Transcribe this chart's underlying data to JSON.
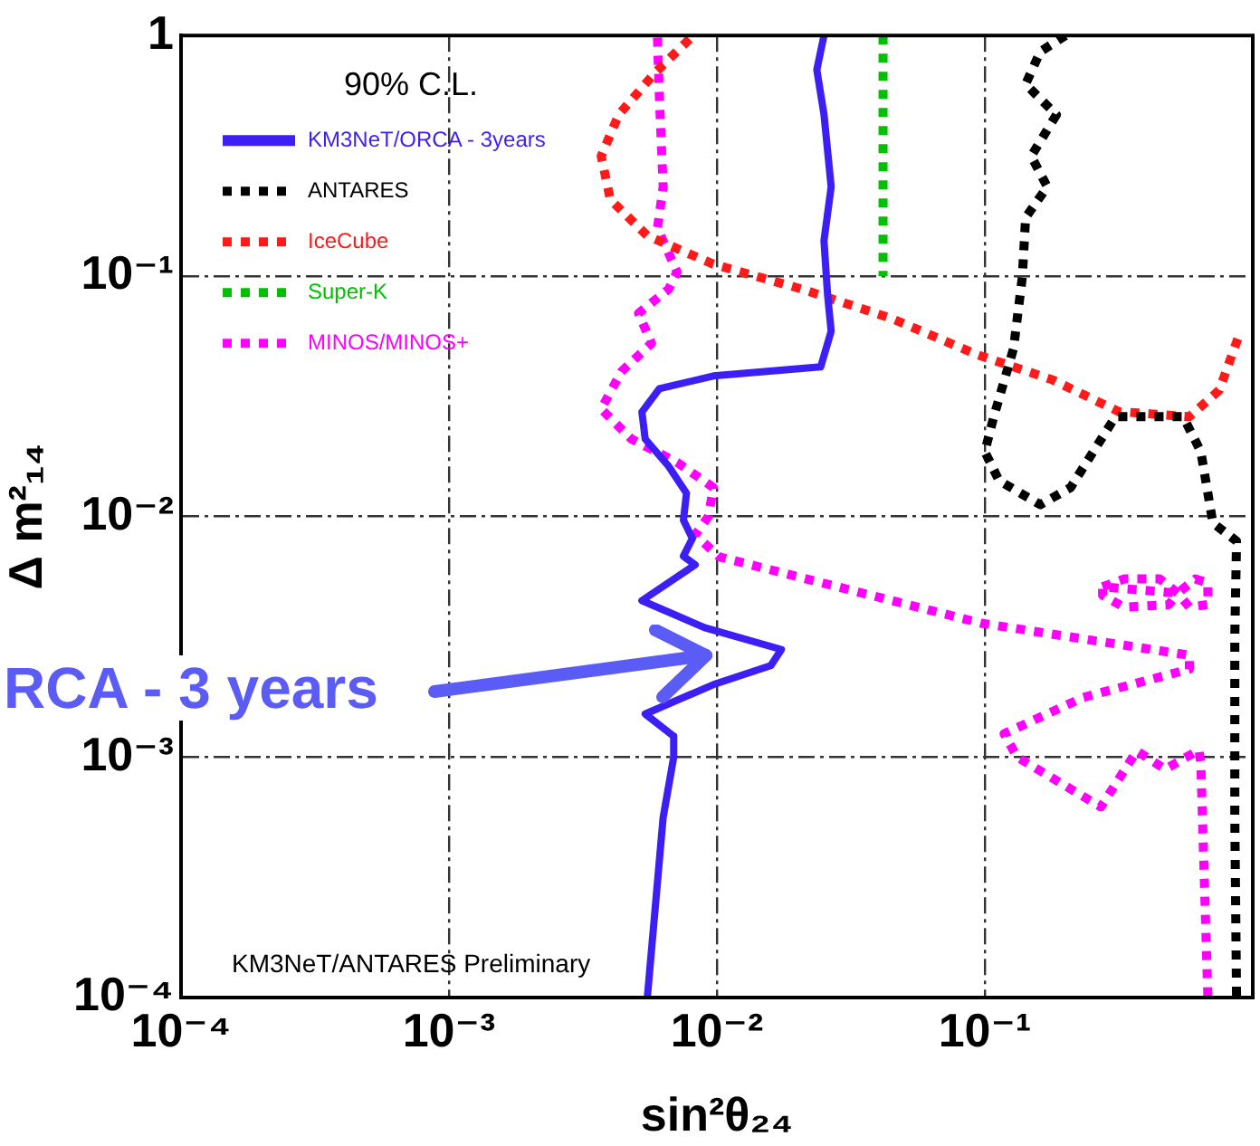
{
  "chart_data": {
    "type": "line",
    "xlabel": "sin²θ₂₄",
    "ylabel": "Δ m²₁₄",
    "legend_title": "90% C.L.",
    "legend": "top left",
    "log": "xy",
    "grid": true,
    "xlim": [
      0.0001,
      1
    ],
    "ylim": [
      0.0001,
      1
    ],
    "xticks": [
      {
        "value": 0.0001,
        "label": "10⁻⁴"
      },
      {
        "value": 0.001,
        "label": "10⁻³"
      },
      {
        "value": 0.01,
        "label": "10⁻²"
      },
      {
        "value": 0.1,
        "label": "10⁻¹"
      },
      {
        "value": 1,
        "label": null
      }
    ],
    "yticks": [
      {
        "value": 0.0001,
        "label": "10⁻⁴"
      },
      {
        "value": 0.001,
        "label": "10⁻³"
      },
      {
        "value": 0.01,
        "label": "10⁻²"
      },
      {
        "value": 0.1,
        "label": "10⁻¹"
      },
      1
    ],
    "series": [
      {
        "name": "KM3NeT/ORCA - 3years",
        "color": "#3b1ff5",
        "line_style": "solid",
        "x": [
          0.0251,
          0.0236,
          0.0251,
          0.0267,
          0.0251,
          0.0259,
          0.0267,
          0.0244,
          0.0097,
          0.0061,
          0.00525,
          0.0054,
          0.0066,
          0.0077,
          0.0075,
          0.0081,
          0.0075,
          0.0083,
          0.00525,
          0.009,
          0.0174,
          0.0159,
          0.0097,
          0.0054,
          0.0069,
          0.0069,
          0.0063,
          0.0055
        ],
        "values": [
          1,
          0.72,
          0.47,
          0.235,
          0.14,
          0.083,
          0.059,
          0.0419,
          0.0384,
          0.034,
          0.0272,
          0.021,
          0.0162,
          0.0125,
          0.00966,
          0.0081,
          0.00684,
          0.0063,
          0.00447,
          0.00345,
          0.0028,
          0.0024,
          0.002,
          0.00151,
          0.00122,
          0.001,
          0.00056,
          0.0001
        ]
      },
      {
        "name": "ANTARES",
        "color": "#000000",
        "line_style": "dotted",
        "x": [
          0.2,
          0.161,
          0.142,
          0.185,
          0.149,
          0.171,
          0.142,
          0.138,
          0.128,
          0.108,
          0.1,
          0.113,
          0.161,
          0.209,
          0.307,
          0.55,
          0.64,
          0.71,
          0.87,
          0.857,
          0.857,
          0.87
        ],
        "values": [
          1,
          0.856,
          0.627,
          0.468,
          0.315,
          0.235,
          0.175,
          0.099,
          0.05,
          0.026,
          0.0186,
          0.0141,
          0.0112,
          0.0132,
          0.026,
          0.026,
          0.0186,
          0.0094,
          0.0079,
          0.0032,
          0.00056,
          0.0001
        ]
      },
      {
        "name": "IceCube",
        "color": "#ff1a1a",
        "line_style": "dotted",
        "x": [
          0.0079,
          0.00585,
          0.0043,
          0.0037,
          0.004,
          0.0055,
          0.0097,
          0.0209,
          0.045,
          0.094,
          0.179,
          0.316,
          0.58,
          0.75,
          0.9
        ],
        "values": [
          0.966,
          0.696,
          0.468,
          0.315,
          0.208,
          0.147,
          0.112,
          0.088,
          0.0665,
          0.047,
          0.037,
          0.0273,
          0.026,
          0.0335,
          0.059
        ]
      },
      {
        "name": "Super-K",
        "color": "#00c000",
        "line_style": "dotted",
        "x": [
          0.0417,
          0.0417
        ],
        "values": [
          1,
          0.1
        ]
      },
      {
        "name": "MINOS/MINOS+",
        "color": "#ff00ff",
        "line_style": "dotted",
        "x": [
          0.006,
          0.0061,
          0.0063,
          0.006,
          0.0071,
          0.0066,
          0.0051,
          0.0057,
          0.0044,
          0.0037,
          0.0048,
          0.0071,
          0.0097,
          0.0093,
          0.0083,
          0.0102,
          0.097,
          0.58,
          0.58,
          0.233,
          0.118,
          0.132,
          0.271,
          0.369,
          0.471,
          0.63,
          0.64,
          0.68,
          null,
          0.275,
          0.331,
          0.45,
          0.525,
          0.486,
          0.331,
          0.275,
          0.275,
          0.525,
          0.61,
          0.68,
          0.68,
          0.58,
          0.525
        ],
        "values": [
          0.98,
          0.557,
          0.235,
          0.158,
          0.104,
          0.088,
          0.07,
          0.0525,
          0.04,
          0.028,
          0.021,
          0.0168,
          0.0132,
          0.01,
          0.0084,
          0.0068,
          0.0036,
          0.00265,
          0.00232,
          0.00177,
          0.00125,
          0.001,
          0.00062,
          0.00106,
          0.00089,
          0.00107,
          0.00094,
          0.0001,
          null,
          0.0051,
          0.0055,
          0.0055,
          0.0048,
          0.0043,
          0.0042,
          0.0047,
          0.0051,
          0.0048,
          0.0055,
          0.0053,
          0.0043,
          0.0042,
          0.0048
        ]
      }
    ],
    "annotations": [
      "KM3NeT/ANTARES Preliminary",
      "RCA - 3 years"
    ]
  }
}
